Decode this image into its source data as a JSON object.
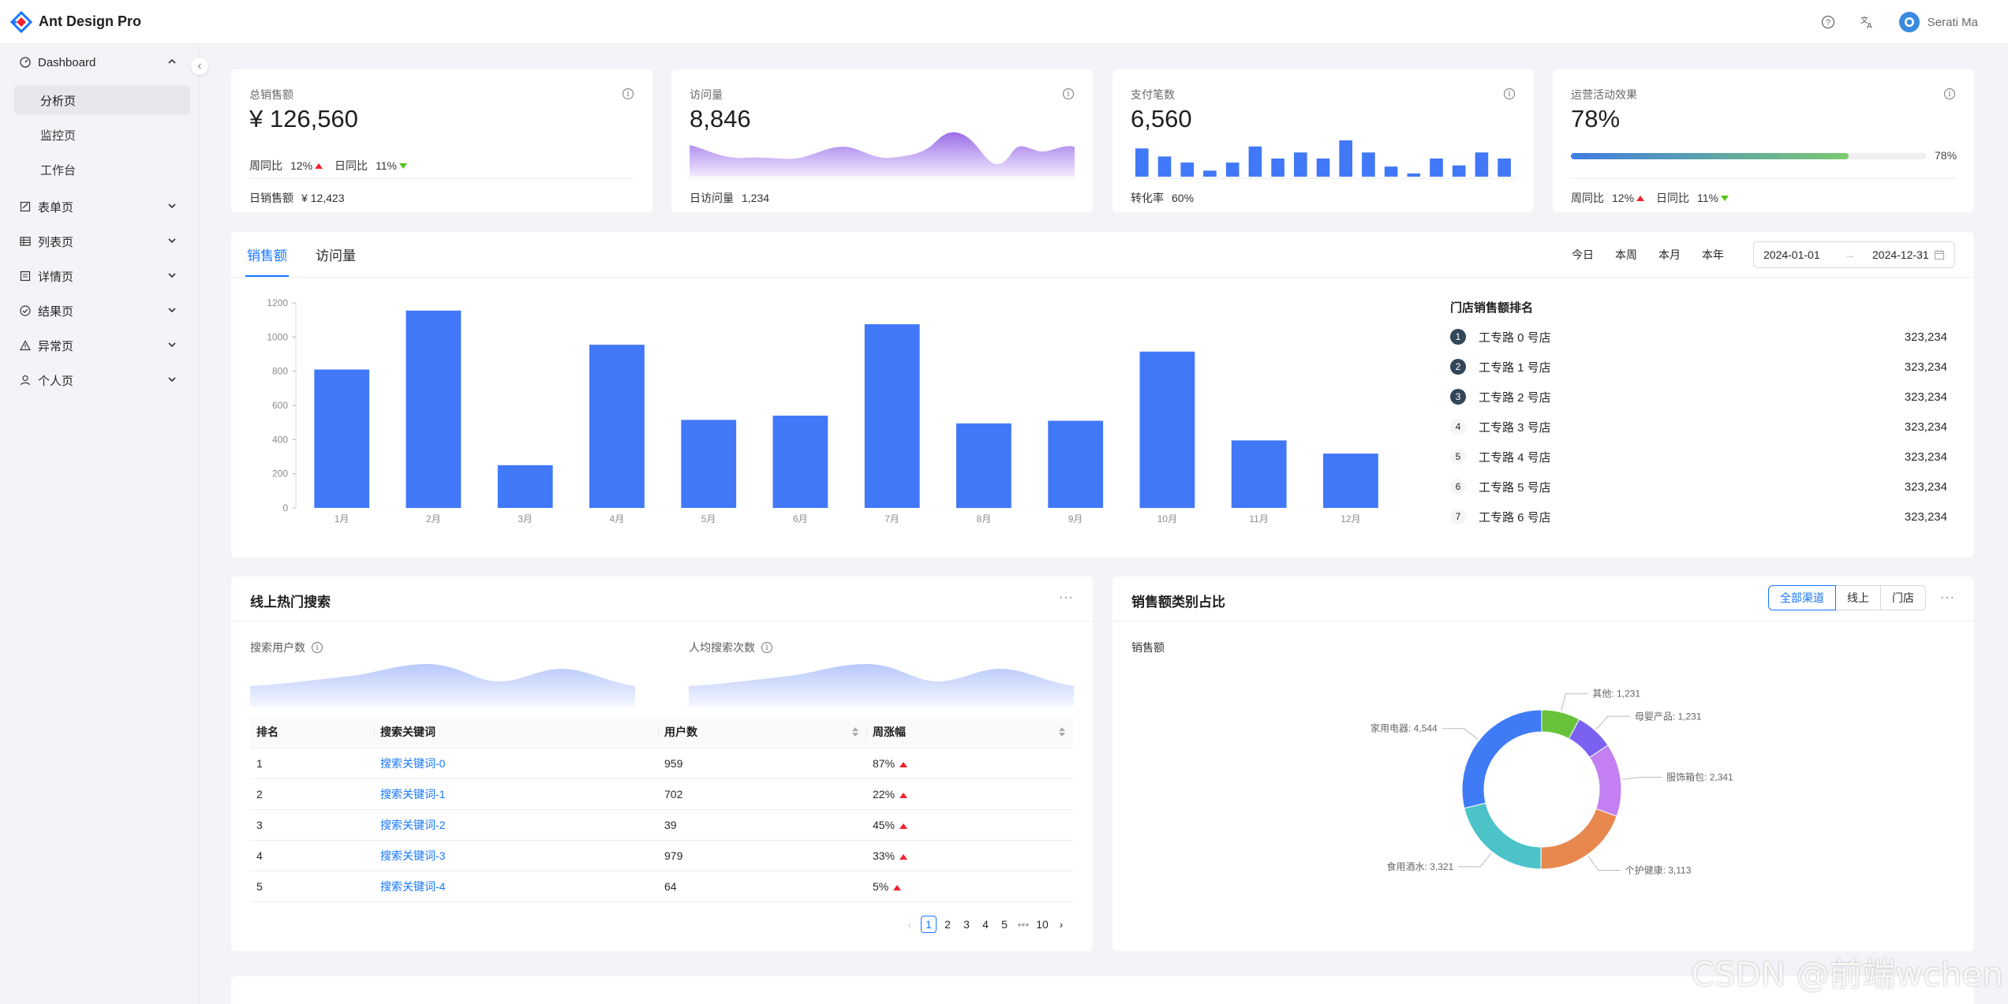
{
  "app": {
    "title": "Ant Design Pro"
  },
  "header": {
    "help_icon": "question-circle-icon",
    "lang_icon": "translation-icon",
    "user_name": "Serati Ma"
  },
  "sidebar": {
    "dashboard": {
      "label": "Dashboard",
      "icon": "dashboard-icon"
    },
    "dashboard_children": [
      "分析页",
      "监控页",
      "工作台"
    ],
    "groups": [
      {
        "label": "表单页",
        "icon": "form-icon"
      },
      {
        "label": "列表页",
        "icon": "table-icon"
      },
      {
        "label": "详情页",
        "icon": "profile-icon"
      },
      {
        "label": "结果页",
        "icon": "check-circle-icon"
      },
      {
        "label": "异常页",
        "icon": "warning-icon"
      },
      {
        "label": "个人页",
        "icon": "user-icon"
      }
    ]
  },
  "stats": {
    "sales": {
      "title": "总销售额",
      "value": "¥ 126,560",
      "week_label": "周同比",
      "week_value": "12%",
      "day_label": "日同比",
      "day_value": "11%",
      "footer_label": "日销售额",
      "footer_value": "¥ 12,423"
    },
    "visits": {
      "title": "访问量",
      "value": "8,846",
      "footer_label": "日访问量",
      "footer_value": "1,234"
    },
    "payments": {
      "title": "支付笔数",
      "value": "6,560",
      "footer_label": "转化率",
      "footer_value": "60%",
      "bars": [
        7,
        5,
        3.5,
        1.5,
        3.5,
        7.5,
        4.5,
        6,
        4.5,
        9,
        6,
        2.5,
        0.8,
        4.5,
        2.8,
        6,
        4.5
      ]
    },
    "operations": {
      "title": "运营活动效果",
      "value": "78%",
      "progress": 0.78,
      "progress_label": "78%",
      "week_label": "周同比",
      "week_value": "12%",
      "day_label": "日同比",
      "day_value": "11%"
    }
  },
  "sales_panel": {
    "tabs": [
      "销售额",
      "访问量"
    ],
    "periods": [
      "今日",
      "本周",
      "本月",
      "本年"
    ],
    "range_start": "2024-01-01",
    "range_end": "2024-12-31",
    "ranking_title": "门店销售额排名",
    "ranking": [
      {
        "rank": "1",
        "name": "工专路 0 号店",
        "value": "323,234"
      },
      {
        "rank": "2",
        "name": "工专路 1 号店",
        "value": "323,234"
      },
      {
        "rank": "3",
        "name": "工专路 2 号店",
        "value": "323,234"
      },
      {
        "rank": "4",
        "name": "工专路 3 号店",
        "value": "323,234"
      },
      {
        "rank": "5",
        "name": "工专路 4 号店",
        "value": "323,234"
      },
      {
        "rank": "6",
        "name": "工专路 5 号店",
        "value": "323,234"
      },
      {
        "rank": "7",
        "name": "工专路 6 号店",
        "value": "323,234"
      }
    ]
  },
  "chart_data": {
    "type": "bar",
    "categories": [
      "1月",
      "2月",
      "3月",
      "4月",
      "5月",
      "6月",
      "7月",
      "8月",
      "9月",
      "10月",
      "11月",
      "12月"
    ],
    "values": [
      810,
      1155,
      250,
      955,
      515,
      540,
      1075,
      495,
      510,
      915,
      395,
      318
    ],
    "ylim": [
      0,
      1200
    ],
    "yticks": [
      0,
      200,
      400,
      600,
      800,
      1000,
      1200
    ],
    "color": "#4178f7",
    "grid": false
  },
  "search_card": {
    "title": "线上热门搜索",
    "users_label": "搜索用户数",
    "avg_label": "人均搜索次数",
    "columns": [
      "排名",
      "搜索关键词",
      "用户数",
      "周涨幅"
    ],
    "rows": [
      {
        "rank": "1",
        "keyword": "搜索关键词-0",
        "users": "959",
        "range": "87%"
      },
      {
        "rank": "2",
        "keyword": "搜索关键词-1",
        "users": "702",
        "range": "22%"
      },
      {
        "rank": "3",
        "keyword": "搜索关键词-2",
        "users": "39",
        "range": "45%"
      },
      {
        "rank": "4",
        "keyword": "搜索关键词-3",
        "users": "979",
        "range": "33%"
      },
      {
        "rank": "5",
        "keyword": "搜索关键词-4",
        "users": "64",
        "range": "5%"
      }
    ],
    "pages": [
      "1",
      "2",
      "3",
      "4",
      "5",
      "•••",
      "10"
    ]
  },
  "category_card": {
    "title": "销售额类别占比",
    "segments": [
      "全部渠道",
      "线上",
      "门店"
    ],
    "subtitle": "销售额",
    "pie": [
      {
        "label": "家用电器: 4,544",
        "value": 4544,
        "color": "#3f7bf5"
      },
      {
        "label": "食用酒水: 3,321",
        "value": 3321,
        "color": "#4cc3c9"
      },
      {
        "label": "个护健康: 3,113",
        "value": 3113,
        "color": "#e8884f"
      },
      {
        "label": "服饰箱包: 2,341",
        "value": 2341,
        "color": "#c480f2"
      },
      {
        "label": "母婴产品: 1,231",
        "value": 1231,
        "color": "#7b61f0"
      },
      {
        "label": "其他: 1,231",
        "value": 1231,
        "color": "#67c23a"
      }
    ]
  },
  "watermark": "CSDN @前端wchen"
}
